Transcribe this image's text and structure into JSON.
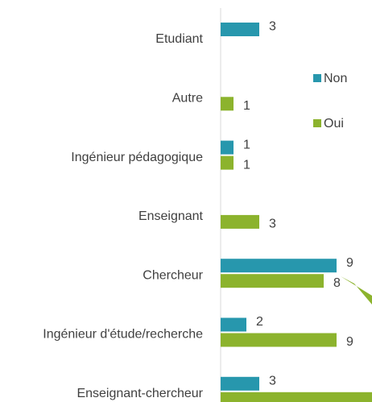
{
  "chart_data": {
    "type": "bar",
    "orientation": "horizontal",
    "categories": [
      "Etudiant",
      "Autre",
      "Ingénieur pédagogique",
      "Enseignant",
      "Chercheur",
      "Ingénieur d'étude/recherche",
      "Enseignant-chercheur"
    ],
    "series": [
      {
        "name": "Non",
        "color": "#2797ad",
        "values": [
          3,
          null,
          1,
          null,
          9,
          2,
          3
        ]
      },
      {
        "name": "Oui",
        "color": "#8cb32d",
        "values": [
          null,
          1,
          1,
          3,
          8,
          9,
          12
        ]
      }
    ],
    "xlim": [
      0,
      12
    ]
  }
}
